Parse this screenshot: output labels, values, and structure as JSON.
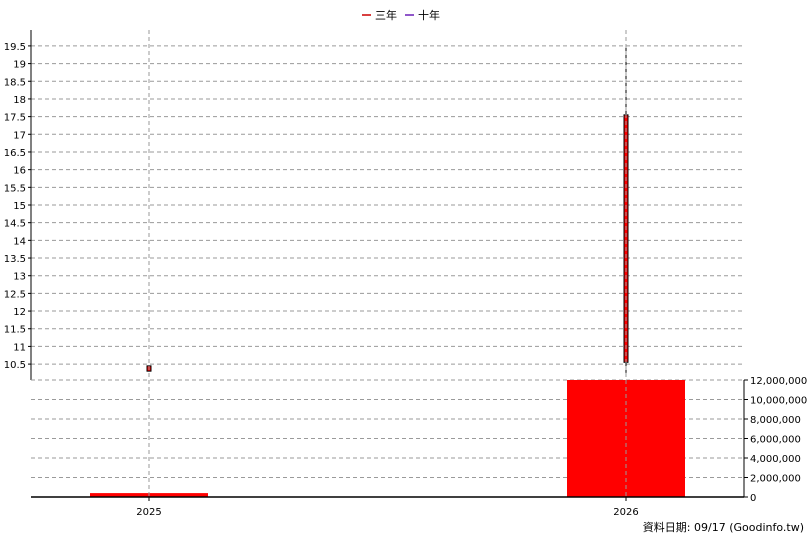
{
  "chart_data": {
    "type": "candlestick+bar",
    "legend": {
      "items": [
        {
          "label": "三年",
          "color": "#cc0000"
        },
        {
          "label": "十年",
          "color": "#6a1fb8"
        }
      ],
      "placement": "top-center"
    },
    "categories": [
      "2025",
      "2026"
    ],
    "price_panel": {
      "y_ticks": [
        "10.5",
        "11",
        "11.5",
        "12",
        "12.5",
        "13",
        "13.5",
        "14",
        "14.5",
        "15",
        "15.5",
        "16",
        "16.5",
        "17",
        "17.5",
        "18",
        "18.5",
        "19",
        "19.5"
      ],
      "ylim": [
        10.05,
        19.95
      ],
      "grid": true,
      "candles": [
        {
          "x": "2025",
          "open": 10.3,
          "close": 10.45,
          "high": 10.45,
          "low": 10.3,
          "color": "#ff0000"
        },
        {
          "x": "2026",
          "open": 10.55,
          "close": 17.55,
          "high": 19.5,
          "low": 10.25,
          "color": "#ff0000"
        }
      ]
    },
    "volume_panel": {
      "y_ticks": [
        "12,000,000",
        "10,000,000",
        "8,000,000",
        "6,000,000",
        "4,000,000",
        "2,000,000",
        "0"
      ],
      "ylim": [
        0,
        12000000
      ],
      "grid": true,
      "bars": [
        {
          "x": "2025",
          "value": 400000,
          "color": "#ff0000"
        },
        {
          "x": "2026",
          "value": 12000000,
          "color": "#ff0000"
        }
      ]
    }
  },
  "footer": {
    "text": "資料日期: 09/17  (Goodinfo.tw)"
  }
}
